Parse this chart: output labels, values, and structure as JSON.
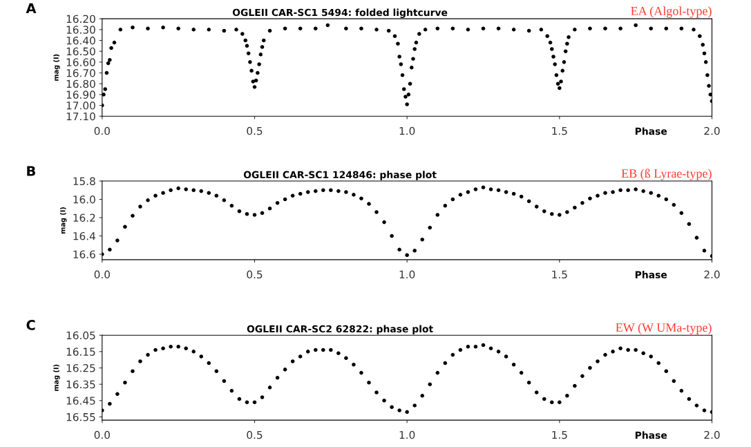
{
  "chart_data": [
    {
      "type": "scatter",
      "title": "OGLEII CAR-SC1 5494: folded lightcurve",
      "xlabel": "Phase",
      "ylabel": "mag (I)",
      "annotations": [
        "A",
        "EA (Algol-type)"
      ],
      "marker": "circle",
      "grid": false,
      "legend": false,
      "xlim": [
        0,
        2
      ],
      "xticks": [
        {
          "value": 0,
          "label": "0.0"
        },
        {
          "value": 0.5,
          "label": "0.5"
        },
        {
          "value": 1,
          "label": "1.0"
        },
        {
          "value": 1.5,
          "label": "1.5"
        },
        {
          "value": 2,
          "label": "2.0"
        }
      ],
      "ylim": [
        17.1,
        16.2
      ],
      "yticks": [
        {
          "value": 16.2,
          "label": "16.20"
        },
        {
          "value": 16.3,
          "label": "16.30"
        },
        {
          "value": 16.4,
          "label": "16.40"
        },
        {
          "value": 16.5,
          "label": "16.50"
        },
        {
          "value": 16.6,
          "label": "16.60"
        },
        {
          "value": 16.7,
          "label": "16.70"
        },
        {
          "value": 16.8,
          "label": "16.80"
        },
        {
          "value": 16.9,
          "label": "16.90"
        },
        {
          "value": 17.0,
          "label": "17.00"
        },
        {
          "value": 17.1,
          "label": "17.10"
        }
      ],
      "series": [
        {
          "color": "#000000",
          "x": [
            0,
            0.005,
            0.01,
            0.015,
            0.02,
            0.025,
            0.03,
            0.04,
            0.06,
            0.1,
            0.15,
            0.2,
            0.25,
            0.3,
            0.35,
            0.4,
            0.44,
            0.46,
            0.47,
            0.475,
            0.48,
            0.485,
            0.49,
            0.495,
            0.5,
            0.505,
            0.51,
            0.515,
            0.52,
            0.525,
            0.53,
            0.55,
            0.6,
            0.65,
            0.7,
            0.74,
            0.8,
            0.85,
            0.9,
            0.94,
            0.96,
            0.97,
            0.975,
            0.98,
            0.985,
            0.99,
            0.995,
            1.0,
            1.005,
            1.01,
            1.015,
            1.02,
            1.025,
            1.03,
            1.04,
            1.06,
            1.1,
            1.15,
            1.2,
            1.25,
            1.3,
            1.35,
            1.4,
            1.44,
            1.46,
            1.47,
            1.475,
            1.48,
            1.485,
            1.49,
            1.495,
            1.5,
            1.505,
            1.51,
            1.515,
            1.52,
            1.525,
            1.53,
            1.55,
            1.6,
            1.65,
            1.7,
            1.75,
            1.8,
            1.85,
            1.9,
            1.94,
            1.96,
            1.97,
            1.975,
            1.98,
            1.985,
            1.99,
            1.995,
            2.0
          ],
          "values": [
            17.0,
            16.9,
            16.85,
            16.7,
            16.61,
            16.58,
            16.47,
            16.42,
            16.3,
            16.28,
            16.29,
            16.28,
            16.29,
            16.3,
            16.3,
            16.31,
            16.3,
            16.34,
            16.4,
            16.45,
            16.52,
            16.6,
            16.68,
            16.78,
            16.83,
            16.77,
            16.7,
            16.62,
            16.53,
            16.46,
            16.4,
            16.31,
            16.29,
            16.29,
            16.29,
            16.26,
            16.29,
            16.29,
            16.3,
            16.31,
            16.36,
            16.43,
            16.55,
            16.62,
            16.72,
            16.85,
            16.92,
            16.99,
            16.9,
            16.8,
            16.65,
            16.57,
            16.48,
            16.42,
            16.34,
            16.3,
            16.29,
            16.29,
            16.3,
            16.29,
            16.29,
            16.3,
            16.31,
            16.3,
            16.36,
            16.42,
            16.48,
            16.55,
            16.62,
            16.72,
            16.8,
            16.84,
            16.78,
            16.68,
            16.6,
            16.5,
            16.43,
            16.37,
            16.3,
            16.29,
            16.29,
            16.29,
            16.26,
            16.29,
            16.29,
            16.29,
            16.3,
            16.36,
            16.44,
            16.52,
            16.6,
            16.72,
            16.82,
            16.9,
            16.96
          ]
        }
      ]
    },
    {
      "type": "scatter",
      "title": "OGLEII CAR-SC1 124846: phase plot",
      "xlabel": "Phase",
      "ylabel": "mag (I)",
      "annotations": [
        "B",
        "EB (ß Lyrae-type)"
      ],
      "marker": "circle",
      "grid": false,
      "legend": false,
      "xlim": [
        0,
        2
      ],
      "xticks": [
        {
          "value": 0,
          "label": "0.0"
        },
        {
          "value": 0.5,
          "label": "0.5"
        },
        {
          "value": 1,
          "label": "1.0"
        },
        {
          "value": 1.5,
          "label": "1.5"
        },
        {
          "value": 2,
          "label": "2.0"
        }
      ],
      "ylim": [
        16.66,
        15.8
      ],
      "yticks": [
        15.8,
        {
          "value": 16.0,
          "label": "16.0"
        },
        16.2,
        16.4,
        16.6
      ],
      "series": [
        {
          "color": "#000000",
          "x": [
            0,
            0.025,
            0.05,
            0.075,
            0.1,
            0.125,
            0.15,
            0.175,
            0.2,
            0.225,
            0.25,
            0.275,
            0.3,
            0.325,
            0.35,
            0.375,
            0.4,
            0.425,
            0.45,
            0.475,
            0.5,
            0.525,
            0.55,
            0.575,
            0.6,
            0.625,
            0.65,
            0.675,
            0.7,
            0.725,
            0.75,
            0.775,
            0.8,
            0.825,
            0.85,
            0.875,
            0.9,
            0.925,
            0.95,
            0.975,
            1.0,
            1.025,
            1.05,
            1.075,
            1.1,
            1.125,
            1.15,
            1.175,
            1.2,
            1.225,
            1.25,
            1.275,
            1.3,
            1.325,
            1.35,
            1.375,
            1.4,
            1.425,
            1.45,
            1.475,
            1.5,
            1.525,
            1.55,
            1.575,
            1.6,
            1.625,
            1.65,
            1.675,
            1.7,
            1.725,
            1.75,
            1.775,
            1.8,
            1.825,
            1.85,
            1.875,
            1.9,
            1.925,
            1.95,
            1.975,
            2.0
          ],
          "values": [
            16.6,
            16.55,
            16.45,
            16.3,
            16.18,
            16.08,
            16.01,
            15.96,
            15.93,
            15.9,
            15.88,
            15.89,
            15.9,
            15.91,
            15.93,
            15.96,
            16.01,
            16.07,
            16.13,
            16.16,
            16.17,
            16.15,
            16.1,
            16.04,
            16.0,
            15.96,
            15.94,
            15.92,
            15.91,
            15.9,
            15.9,
            15.91,
            15.92,
            15.95,
            15.99,
            16.05,
            16.14,
            16.25,
            16.4,
            16.55,
            16.61,
            16.56,
            16.44,
            16.31,
            16.17,
            16.07,
            16.0,
            15.95,
            15.92,
            15.89,
            15.87,
            15.89,
            15.9,
            15.92,
            15.94,
            15.97,
            16.02,
            16.08,
            16.13,
            16.16,
            16.17,
            16.14,
            16.09,
            16.04,
            15.99,
            15.96,
            15.93,
            15.92,
            15.9,
            15.9,
            15.89,
            15.91,
            15.93,
            15.96,
            16.0,
            16.06,
            16.15,
            16.27,
            16.42,
            16.56,
            16.62
          ]
        }
      ]
    },
    {
      "type": "scatter",
      "title": "OGLEII CAR-SC2 62822: phase plot",
      "xlabel": "Phase",
      "ylabel": "mag (I)",
      "annotations": [
        "C",
        "EW (W UMa-type)"
      ],
      "marker": "circle",
      "grid": false,
      "legend": false,
      "xlim": [
        0,
        2
      ],
      "xticks": [
        {
          "value": 0,
          "label": "0.0"
        },
        {
          "value": 0.5,
          "label": "0.5"
        },
        {
          "value": 1,
          "label": "1.0"
        },
        {
          "value": 1.5,
          "label": "1.5"
        },
        {
          "value": 2,
          "label": "2.0"
        }
      ],
      "ylim": [
        16.57,
        16.05
      ],
      "yticks": [
        16.05,
        16.15,
        16.25,
        16.35,
        16.45,
        16.55
      ],
      "series": [
        {
          "color": "#000000",
          "x": [
            0,
            0.025,
            0.05,
            0.075,
            0.1,
            0.125,
            0.15,
            0.175,
            0.2,
            0.225,
            0.25,
            0.275,
            0.3,
            0.325,
            0.35,
            0.375,
            0.4,
            0.425,
            0.45,
            0.475,
            0.5,
            0.525,
            0.55,
            0.575,
            0.6,
            0.625,
            0.65,
            0.675,
            0.7,
            0.725,
            0.75,
            0.775,
            0.8,
            0.825,
            0.85,
            0.875,
            0.9,
            0.925,
            0.95,
            0.975,
            1.0,
            1.025,
            1.05,
            1.075,
            1.1,
            1.125,
            1.15,
            1.175,
            1.2,
            1.225,
            1.25,
            1.275,
            1.3,
            1.325,
            1.35,
            1.375,
            1.4,
            1.425,
            1.45,
            1.475,
            1.5,
            1.525,
            1.55,
            1.575,
            1.6,
            1.625,
            1.65,
            1.675,
            1.7,
            1.725,
            1.75,
            1.775,
            1.8,
            1.825,
            1.85,
            1.875,
            1.9,
            1.925,
            1.95,
            1.975,
            2.0
          ],
          "values": [
            16.51,
            16.47,
            16.41,
            16.34,
            16.27,
            16.21,
            16.17,
            16.14,
            16.13,
            16.12,
            16.12,
            16.13,
            16.15,
            16.18,
            16.22,
            16.27,
            16.33,
            16.39,
            16.44,
            16.46,
            16.46,
            16.43,
            16.37,
            16.31,
            16.26,
            16.21,
            16.18,
            16.15,
            16.14,
            16.14,
            16.14,
            16.16,
            16.19,
            16.23,
            16.28,
            16.34,
            16.4,
            16.45,
            16.49,
            16.51,
            16.52,
            16.48,
            16.42,
            16.35,
            16.28,
            16.22,
            16.17,
            16.14,
            16.12,
            16.12,
            16.11,
            16.13,
            16.15,
            16.18,
            16.23,
            16.28,
            16.34,
            16.4,
            16.44,
            16.46,
            16.46,
            16.42,
            16.36,
            16.3,
            16.25,
            16.21,
            16.17,
            16.15,
            16.13,
            16.14,
            16.14,
            16.16,
            16.18,
            16.22,
            16.27,
            16.33,
            16.39,
            16.44,
            16.48,
            16.51,
            16.52
          ]
        }
      ]
    }
  ]
}
